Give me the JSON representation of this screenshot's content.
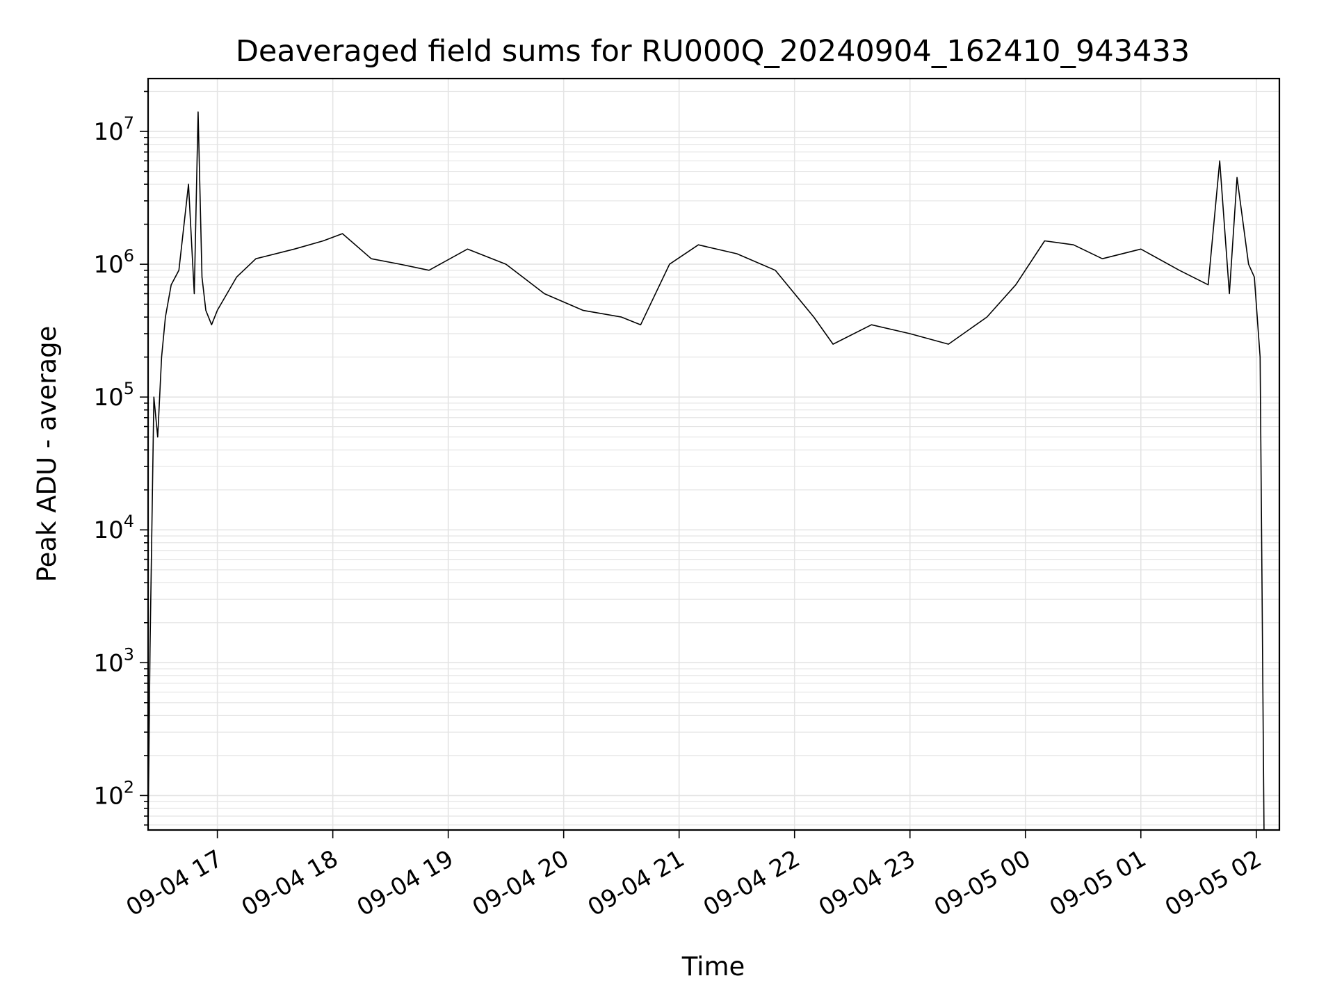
{
  "chart_data": {
    "type": "line",
    "title": "Deaveraged field sums for RU000Q_20240904_162410_943433",
    "xlabel": "Time",
    "ylabel": "Peak ADU - average",
    "y_scale": "log",
    "ylim": [
      55,
      25000000
    ],
    "xlim": [
      "2024-09-04 16:24",
      "2024-09-05 02:12"
    ],
    "grid": true,
    "line_color": "#000000",
    "x_ticks": [
      "09-04 17",
      "09-04 18",
      "09-04 19",
      "09-04 20",
      "09-04 21",
      "09-04 22",
      "09-04 23",
      "09-05 00",
      "09-05 01",
      "09-05 02"
    ],
    "y_ticks": [
      {
        "base": "10",
        "exp": "2",
        "value": 100
      },
      {
        "base": "10",
        "exp": "3",
        "value": 1000
      },
      {
        "base": "10",
        "exp": "4",
        "value": 10000
      },
      {
        "base": "10",
        "exp": "5",
        "value": 100000
      },
      {
        "base": "10",
        "exp": "6",
        "value": 1000000
      },
      {
        "base": "10",
        "exp": "7",
        "value": 10000000
      }
    ],
    "series": [
      {
        "x": [
          "2024-09-04 16:24",
          "2024-09-04 16:25",
          "2024-09-04 16:27",
          "2024-09-04 16:29",
          "2024-09-04 16:31",
          "2024-09-04 16:33",
          "2024-09-04 16:36",
          "2024-09-04 16:40",
          "2024-09-04 16:45",
          "2024-09-04 16:48",
          "2024-09-04 16:50",
          "2024-09-04 16:52",
          "2024-09-04 16:54",
          "2024-09-04 16:57",
          "2024-09-04 17:00",
          "2024-09-04 17:10",
          "2024-09-04 17:20",
          "2024-09-04 17:40",
          "2024-09-04 17:55",
          "2024-09-04 18:05",
          "2024-09-04 18:20",
          "2024-09-04 18:35",
          "2024-09-04 18:50",
          "2024-09-04 19:10",
          "2024-09-04 19:30",
          "2024-09-04 19:50",
          "2024-09-04 20:10",
          "2024-09-04 20:30",
          "2024-09-04 20:40",
          "2024-09-04 20:55",
          "2024-09-04 21:10",
          "2024-09-04 21:30",
          "2024-09-04 21:50",
          "2024-09-04 22:10",
          "2024-09-04 22:20",
          "2024-09-04 22:40",
          "2024-09-04 23:00",
          "2024-09-04 23:20",
          "2024-09-04 23:40",
          "2024-09-04 23:55",
          "2024-09-05 00:10",
          "2024-09-05 00:25",
          "2024-09-05 00:40",
          "2024-09-05 01:00",
          "2024-09-05 01:20",
          "2024-09-05 01:35",
          "2024-09-05 01:41",
          "2024-09-05 01:46",
          "2024-09-05 01:50",
          "2024-09-05 01:56",
          "2024-09-05 01:59",
          "2024-09-05 02:02",
          "2024-09-05 02:03",
          "2024-09-05 02:04"
        ],
        "y": [
          55,
          1300,
          100000,
          50000,
          200000,
          400000,
          700000,
          900000,
          4000000,
          600000,
          14000000,
          800000,
          450000,
          350000,
          450000,
          800000,
          1100000,
          1300000,
          1500000,
          1700000,
          1100000,
          1000000,
          900000,
          1300000,
          1000000,
          600000,
          450000,
          400000,
          350000,
          1000000,
          1400000,
          1200000,
          900000,
          400000,
          250000,
          350000,
          300000,
          250000,
          400000,
          700000,
          1500000,
          1400000,
          1100000,
          1300000,
          900000,
          700000,
          6000000,
          600000,
          4500000,
          1000000,
          800000,
          200000,
          3500,
          55
        ]
      }
    ]
  }
}
